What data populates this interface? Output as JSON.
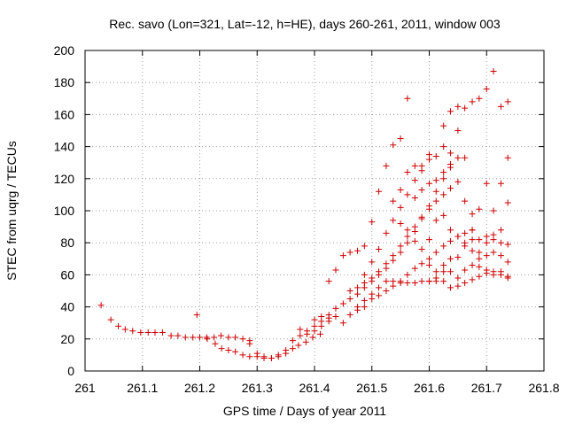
{
  "chart_data": {
    "type": "scatter",
    "title": "Rec. savo (Lon=321, Lat=-12, h=HE), days 260-261, 2011, window 003",
    "xlabel": "GPS time / Days of year 2011",
    "ylabel": "STEC from uqrg / TECUs",
    "xlim": [
      261,
      261.8
    ],
    "ylim": [
      0,
      200
    ],
    "x_ticks": [
      "261",
      "261.1",
      "261.2",
      "261.3",
      "261.4",
      "261.5",
      "261.6",
      "261.7",
      "261.8"
    ],
    "y_ticks": [
      "0",
      "20",
      "40",
      "60",
      "80",
      "100",
      "120",
      "140",
      "160",
      "180",
      "200"
    ],
    "x_tick_values": [
      261,
      261.1,
      261.2,
      261.3,
      261.4,
      261.5,
      261.6,
      261.7,
      261.8
    ],
    "y_tick_values": [
      0,
      20,
      40,
      60,
      80,
      100,
      120,
      140,
      160,
      180,
      200
    ],
    "grid": true,
    "marker": "+",
    "color": "#cc0000",
    "points": [
      [
        261.028,
        41
      ],
      [
        261.045,
        32
      ],
      [
        261.058,
        28
      ],
      [
        261.07,
        26
      ],
      [
        261.083,
        25
      ],
      [
        261.097,
        24
      ],
      [
        261.11,
        24
      ],
      [
        261.122,
        24
      ],
      [
        261.135,
        24
      ],
      [
        261.15,
        22
      ],
      [
        261.162,
        22
      ],
      [
        261.175,
        21
      ],
      [
        261.188,
        21
      ],
      [
        261.2,
        21
      ],
      [
        261.212,
        21
      ],
      [
        261.225,
        21
      ],
      [
        261.237,
        22
      ],
      [
        261.25,
        21
      ],
      [
        261.262,
        21
      ],
      [
        261.275,
        20
      ],
      [
        261.287,
        19
      ],
      [
        261.195,
        35
      ],
      [
        261.2,
        21
      ],
      [
        261.213,
        20
      ],
      [
        261.227,
        17
      ],
      [
        261.238,
        14
      ],
      [
        261.25,
        13
      ],
      [
        261.262,
        12
      ],
      [
        261.275,
        10
      ],
      [
        261.287,
        9
      ],
      [
        261.3,
        9
      ],
      [
        261.312,
        8
      ],
      [
        261.325,
        8
      ],
      [
        261.337,
        9
      ],
      [
        261.35,
        11
      ],
      [
        261.362,
        14
      ],
      [
        261.372,
        16
      ],
      [
        261.385,
        18
      ],
      [
        261.397,
        21
      ],
      [
        261.41,
        23
      ],
      [
        261.287,
        17
      ],
      [
        261.3,
        11
      ],
      [
        261.312,
        9
      ],
      [
        261.325,
        8
      ],
      [
        261.337,
        10
      ],
      [
        261.35,
        13
      ],
      [
        261.362,
        19
      ],
      [
        261.375,
        22
      ],
      [
        261.387,
        25
      ],
      [
        261.4,
        28
      ],
      [
        261.412,
        31
      ],
      [
        261.425,
        33
      ],
      [
        261.4,
        32
      ],
      [
        261.412,
        34
      ],
      [
        261.425,
        35
      ],
      [
        261.437,
        39
      ],
      [
        261.45,
        42
      ],
      [
        261.462,
        45
      ],
      [
        261.475,
        48
      ],
      [
        261.487,
        52
      ],
      [
        261.5,
        56
      ],
      [
        261.512,
        60
      ],
      [
        261.525,
        64
      ],
      [
        261.537,
        69
      ],
      [
        261.55,
        74
      ],
      [
        261.562,
        80
      ],
      [
        261.575,
        87
      ],
      [
        261.587,
        95
      ],
      [
        261.6,
        103
      ],
      [
        261.612,
        112
      ],
      [
        261.625,
        120
      ],
      [
        261.637,
        127
      ],
      [
        261.65,
        133
      ],
      [
        261.375,
        26
      ],
      [
        261.387,
        23
      ],
      [
        261.4,
        25
      ],
      [
        261.412,
        28
      ],
      [
        261.425,
        31
      ],
      [
        261.437,
        34
      ],
      [
        261.45,
        30
      ],
      [
        261.462,
        35
      ],
      [
        261.475,
        40
      ],
      [
        261.487,
        44
      ],
      [
        261.5,
        48
      ],
      [
        261.512,
        52
      ],
      [
        261.525,
        56
      ],
      [
        261.537,
        56
      ],
      [
        261.55,
        56
      ],
      [
        261.562,
        55
      ],
      [
        261.575,
        55
      ],
      [
        261.587,
        56
      ],
      [
        261.6,
        56
      ],
      [
        261.612,
        58
      ],
      [
        261.625,
        56
      ],
      [
        261.637,
        52
      ],
      [
        261.65,
        53
      ],
      [
        261.662,
        55
      ],
      [
        261.675,
        57
      ],
      [
        261.687,
        59
      ],
      [
        261.7,
        61
      ],
      [
        261.712,
        62
      ],
      [
        261.725,
        60
      ],
      [
        261.737,
        58
      ],
      [
        261.425,
        56
      ],
      [
        261.437,
        63
      ],
      [
        261.45,
        72
      ],
      [
        261.462,
        74
      ],
      [
        261.475,
        75
      ],
      [
        261.487,
        78
      ],
      [
        261.5,
        93
      ],
      [
        261.512,
        112
      ],
      [
        261.525,
        128
      ],
      [
        261.537,
        141
      ],
      [
        261.55,
        145
      ],
      [
        261.562,
        170
      ],
      [
        261.462,
        50
      ],
      [
        261.475,
        52
      ],
      [
        261.487,
        55
      ],
      [
        261.5,
        58
      ],
      [
        261.512,
        62
      ],
      [
        261.525,
        67
      ],
      [
        261.537,
        72
      ],
      [
        261.55,
        78
      ],
      [
        261.562,
        84
      ],
      [
        261.575,
        90
      ],
      [
        261.587,
        96
      ],
      [
        261.6,
        101
      ],
      [
        261.612,
        106
      ],
      [
        261.625,
        110
      ],
      [
        261.637,
        114
      ],
      [
        261.475,
        38
      ],
      [
        261.487,
        40
      ],
      [
        261.5,
        45
      ],
      [
        261.512,
        47
      ],
      [
        261.525,
        50
      ],
      [
        261.537,
        53
      ],
      [
        261.55,
        55
      ],
      [
        261.562,
        60
      ],
      [
        261.575,
        64
      ],
      [
        261.587,
        67
      ],
      [
        261.6,
        70
      ],
      [
        261.612,
        74
      ],
      [
        261.625,
        78
      ],
      [
        261.637,
        81
      ],
      [
        261.65,
        84
      ],
      [
        261.662,
        86
      ],
      [
        261.675,
        88
      ],
      [
        261.487,
        60
      ],
      [
        261.5,
        68
      ],
      [
        261.512,
        76
      ],
      [
        261.525,
        86
      ],
      [
        261.537,
        94
      ],
      [
        261.55,
        102
      ],
      [
        261.562,
        110
      ],
      [
        261.575,
        119
      ],
      [
        261.587,
        128
      ],
      [
        261.6,
        135
      ],
      [
        261.537,
        106
      ],
      [
        261.55,
        113
      ],
      [
        261.562,
        124
      ],
      [
        261.575,
        108
      ],
      [
        261.587,
        113
      ],
      [
        261.6,
        117
      ],
      [
        261.612,
        119
      ],
      [
        261.625,
        124
      ],
      [
        261.637,
        129
      ],
      [
        261.65,
        150
      ],
      [
        261.662,
        164
      ],
      [
        261.675,
        168
      ],
      [
        261.687,
        170
      ],
      [
        261.7,
        176
      ],
      [
        261.712,
        187
      ],
      [
        261.725,
        165
      ],
      [
        261.737,
        168
      ],
      [
        261.575,
        128
      ],
      [
        261.587,
        125
      ],
      [
        261.6,
        132
      ],
      [
        261.612,
        134
      ],
      [
        261.625,
        153
      ],
      [
        261.637,
        162
      ],
      [
        261.65,
        165
      ],
      [
        261.662,
        133
      ],
      [
        261.675,
        98
      ],
      [
        261.687,
        101
      ],
      [
        261.7,
        117
      ],
      [
        261.712,
        100
      ],
      [
        261.725,
        117
      ],
      [
        261.737,
        133
      ],
      [
        261.55,
        92
      ],
      [
        261.562,
        88
      ],
      [
        261.575,
        81
      ],
      [
        261.587,
        76
      ],
      [
        261.6,
        66
      ],
      [
        261.612,
        62
      ],
      [
        261.625,
        62
      ],
      [
        261.637,
        62
      ],
      [
        261.65,
        58
      ],
      [
        261.662,
        63
      ],
      [
        261.675,
        66
      ],
      [
        261.687,
        70
      ],
      [
        261.7,
        72
      ],
      [
        261.712,
        74
      ],
      [
        261.725,
        72
      ],
      [
        261.737,
        68
      ],
      [
        261.6,
        82
      ],
      [
        261.612,
        94
      ],
      [
        261.625,
        97
      ],
      [
        261.637,
        88
      ],
      [
        261.65,
        84
      ],
      [
        261.662,
        78
      ],
      [
        261.675,
        75
      ],
      [
        261.687,
        74
      ],
      [
        261.7,
        80
      ],
      [
        261.712,
        85
      ],
      [
        261.725,
        88
      ],
      [
        261.737,
        79
      ],
      [
        261.625,
        140
      ],
      [
        261.637,
        136
      ],
      [
        261.65,
        118
      ],
      [
        261.662,
        106
      ],
      [
        261.675,
        88
      ],
      [
        261.687,
        82
      ],
      [
        261.7,
        84
      ],
      [
        261.712,
        82
      ],
      [
        261.725,
        80
      ],
      [
        261.737,
        105
      ],
      [
        261.6,
        56
      ],
      [
        261.612,
        56
      ],
      [
        261.625,
        66
      ],
      [
        261.637,
        70
      ],
      [
        261.65,
        71
      ],
      [
        261.662,
        80
      ],
      [
        261.675,
        82
      ],
      [
        261.687,
        65
      ],
      [
        261.7,
        63
      ],
      [
        261.712,
        60
      ],
      [
        261.725,
        62
      ],
      [
        261.737,
        59
      ]
    ]
  }
}
